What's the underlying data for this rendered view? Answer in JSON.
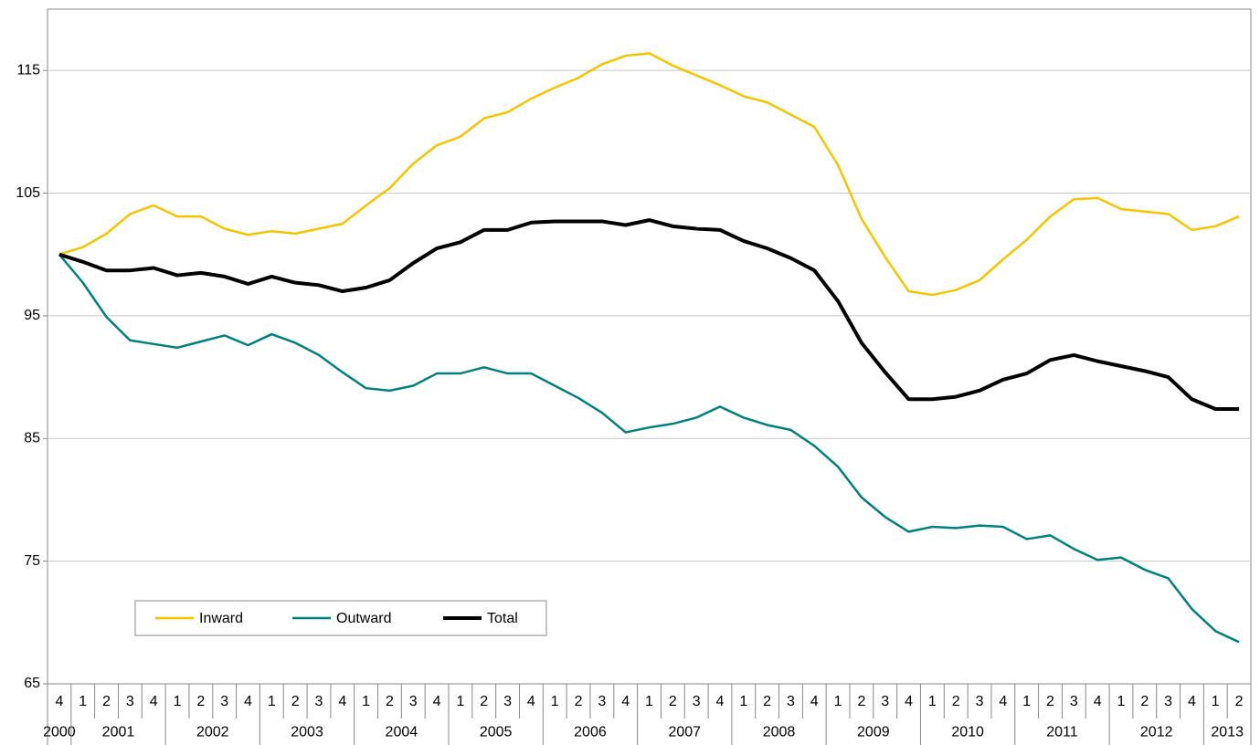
{
  "chart_data": {
    "type": "line",
    "categories": [
      "4",
      "1",
      "2",
      "3",
      "4",
      "1",
      "2",
      "3",
      "4",
      "1",
      "2",
      "3",
      "4",
      "1",
      "2",
      "3",
      "4",
      "1",
      "2",
      "3",
      "4",
      "1",
      "2",
      "3",
      "4",
      "1",
      "2",
      "3",
      "4",
      "1",
      "2",
      "3",
      "4",
      "1",
      "2",
      "3",
      "4",
      "1",
      "2",
      "3",
      "4",
      "1",
      "2",
      "3",
      "4",
      "1",
      "2",
      "3",
      "4",
      "1",
      "2"
    ],
    "years": [
      "2000",
      "2001",
      null,
      null,
      null,
      "2002",
      null,
      null,
      null,
      "2003",
      null,
      null,
      null,
      "2004",
      null,
      null,
      null,
      "2005",
      null,
      null,
      null,
      "2006",
      null,
      null,
      null,
      "2007",
      null,
      null,
      null,
      "2008",
      null,
      null,
      null,
      "2009",
      null,
      null,
      null,
      "2010",
      null,
      null,
      null,
      "2011",
      null,
      null,
      null,
      "2012",
      null,
      null,
      null,
      "2013",
      null
    ],
    "series": [
      {
        "name": "Inward",
        "color": "#f5c400",
        "values": [
          100,
          100.6,
          101.7,
          103.3,
          104.0,
          103.1,
          103.1,
          102.1,
          101.6,
          101.9,
          101.7,
          102.1,
          102.5,
          104.0,
          105.4,
          107.4,
          108.9,
          109.6,
          111.1,
          111.6,
          112.7,
          113.6,
          114.4,
          115.5,
          116.2,
          116.4,
          115.4,
          114.6,
          113.8,
          112.9,
          112.4,
          111.4,
          110.4,
          107.3,
          102.9,
          99.8,
          97.0,
          96.7,
          97.1,
          97.9,
          99.6,
          101.2,
          103.1,
          104.5,
          104.6,
          103.7,
          103.5,
          103.3,
          102.0,
          102.3,
          103.1
        ]
      },
      {
        "name": "Outward",
        "color": "#008080",
        "values": [
          100,
          97.7,
          94.9,
          93.0,
          92.7,
          92.4,
          92.9,
          93.4,
          92.6,
          93.5,
          92.8,
          91.8,
          90.4,
          89.1,
          88.9,
          89.3,
          90.3,
          90.3,
          90.8,
          90.3,
          90.3,
          89.3,
          88.3,
          87.1,
          85.5,
          85.9,
          86.2,
          86.7,
          87.6,
          86.7,
          86.1,
          85.7,
          84.4,
          82.7,
          80.2,
          78.6,
          77.4,
          77.8,
          77.7,
          77.9,
          77.8,
          76.8,
          77.1,
          76.0,
          75.1,
          75.3,
          74.3,
          73.6,
          71.1,
          69.3,
          68.4
        ]
      },
      {
        "name": "Total",
        "color": "#000000",
        "values": [
          100,
          99.4,
          98.7,
          98.7,
          98.9,
          98.3,
          98.5,
          98.2,
          97.6,
          98.2,
          97.7,
          97.5,
          97.0,
          97.3,
          97.9,
          99.3,
          100.5,
          101.0,
          102.0,
          102.0,
          102.6,
          102.7,
          102.7,
          102.7,
          102.4,
          102.8,
          102.3,
          102.1,
          102.0,
          101.1,
          100.5,
          99.7,
          98.7,
          96.2,
          92.8,
          90.4,
          88.2,
          88.2,
          88.4,
          88.9,
          89.8,
          90.3,
          91.4,
          91.8,
          91.3,
          90.9,
          90.5,
          90.0,
          88.2,
          87.4,
          87.4
        ]
      }
    ],
    "ylim": [
      65,
      120
    ],
    "yticks": [
      65,
      75,
      85,
      95,
      105,
      115
    ],
    "grid": true,
    "legend": "lower-left"
  }
}
